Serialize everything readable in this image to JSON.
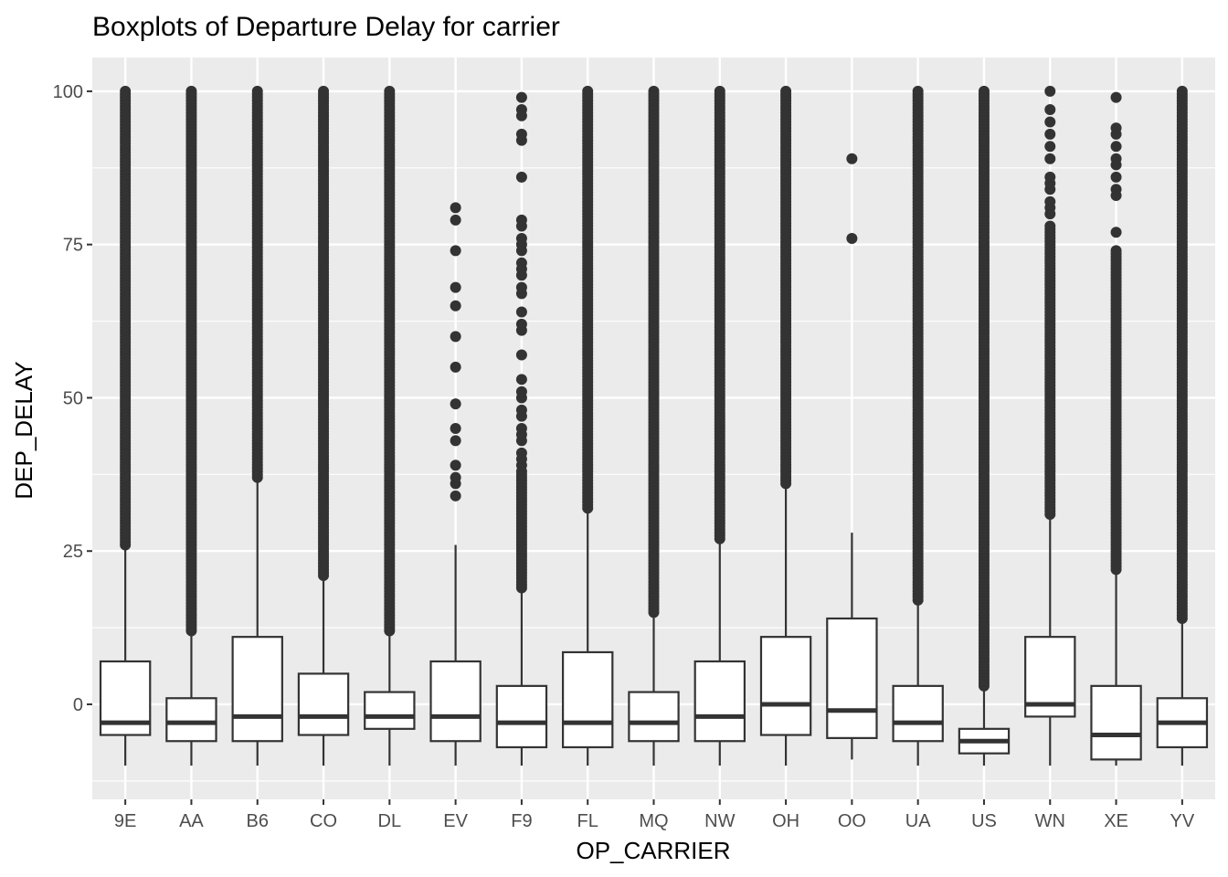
{
  "chart_data": {
    "type": "boxplot",
    "title": "Boxplots of Departure Delay for carrier",
    "xlabel": "OP_CARRIER",
    "ylabel": "DEP_DELAY",
    "ylim": [
      -15.5,
      105.5
    ],
    "yticks": [
      0,
      25,
      50,
      75,
      100
    ],
    "grid": true,
    "categories": [
      "9E",
      "AA",
      "B6",
      "CO",
      "DL",
      "EV",
      "F9",
      "FL",
      "MQ",
      "NW",
      "OH",
      "OO",
      "UA",
      "US",
      "WN",
      "XE",
      "YV"
    ],
    "boxes": [
      {
        "category": "9E",
        "whisker_low": -10,
        "q1": -5,
        "median": -3,
        "q3": 7,
        "whisker_high": 25.5,
        "outliers_dense": [
          26,
          100
        ]
      },
      {
        "category": "AA",
        "whisker_low": -10,
        "q1": -6,
        "median": -3,
        "q3": 1,
        "whisker_high": 11.5,
        "outliers_dense": [
          12,
          100
        ]
      },
      {
        "category": "B6",
        "whisker_low": -10,
        "q1": -6,
        "median": -2,
        "q3": 11,
        "whisker_high": 36.5,
        "outliers_dense": [
          37,
          100
        ]
      },
      {
        "category": "CO",
        "whisker_low": -10,
        "q1": -5,
        "median": -2,
        "q3": 5,
        "whisker_high": 20.5,
        "outliers_dense": [
          21,
          100
        ]
      },
      {
        "category": "DL",
        "whisker_low": -10,
        "q1": -4,
        "median": -2,
        "q3": 2,
        "whisker_high": 11.5,
        "outliers_dense": [
          12,
          100
        ]
      },
      {
        "category": "EV",
        "whisker_low": -10,
        "q1": -6,
        "median": -2,
        "q3": 7,
        "whisker_high": 26,
        "outliers": [
          34,
          36,
          37,
          39,
          43,
          45,
          49,
          55,
          60,
          65,
          68,
          74,
          79,
          81
        ]
      },
      {
        "category": "F9",
        "whisker_low": -10,
        "q1": -7,
        "median": -3,
        "q3": 3,
        "whisker_high": 18.5,
        "outliers_dense": [
          19,
          38
        ],
        "outliers": [
          39,
          40,
          41,
          43,
          44,
          45,
          47,
          48,
          50,
          51,
          53,
          57,
          61,
          62,
          64,
          67,
          68,
          70,
          71,
          72,
          74,
          75,
          76,
          78,
          79,
          86,
          92,
          93,
          96,
          97,
          99
        ]
      },
      {
        "category": "FL",
        "whisker_low": -10,
        "q1": -7,
        "median": -3,
        "q3": 8.5,
        "whisker_high": 31.5,
        "outliers_dense": [
          32,
          100
        ]
      },
      {
        "category": "MQ",
        "whisker_low": -10,
        "q1": -6,
        "median": -3,
        "q3": 2,
        "whisker_high": 14.5,
        "outliers_dense": [
          15,
          100
        ]
      },
      {
        "category": "NW",
        "whisker_low": -10,
        "q1": -6,
        "median": -2,
        "q3": 7,
        "whisker_high": 26.5,
        "outliers_dense": [
          27,
          100
        ]
      },
      {
        "category": "OH",
        "whisker_low": -10,
        "q1": -5,
        "median": 0,
        "q3": 11,
        "whisker_high": 35.5,
        "outliers_dense": [
          36,
          100
        ]
      },
      {
        "category": "OO",
        "whisker_low": -9,
        "q1": -5.5,
        "median": -1,
        "q3": 14,
        "whisker_high": 28,
        "outliers": [
          76,
          89
        ]
      },
      {
        "category": "UA",
        "whisker_low": -10,
        "q1": -6,
        "median": -3,
        "q3": 3,
        "whisker_high": 16.5,
        "outliers_dense": [
          17,
          100
        ]
      },
      {
        "category": "US",
        "whisker_low": -10,
        "q1": -8,
        "median": -6,
        "q3": -4,
        "whisker_high": 2.5,
        "outliers_dense": [
          3,
          100
        ]
      },
      {
        "category": "WN",
        "whisker_low": -10,
        "q1": -2,
        "median": 0,
        "q3": 11,
        "whisker_high": 30.5,
        "outliers_dense": [
          31,
          78
        ],
        "outliers": [
          80,
          81,
          82,
          84,
          85,
          86,
          89,
          91,
          93,
          95,
          97,
          100
        ]
      },
      {
        "category": "XE",
        "whisker_low": -10,
        "q1": -9,
        "median": -5,
        "q3": 3,
        "whisker_high": 21.5,
        "outliers_dense": [
          22,
          74
        ],
        "outliers": [
          77,
          83,
          84,
          86,
          88,
          89,
          91,
          93,
          94,
          99
        ]
      },
      {
        "category": "YV",
        "whisker_low": -10,
        "q1": -7,
        "median": -3,
        "q3": 1,
        "whisker_high": 13.5,
        "outliers_dense": [
          14,
          100
        ]
      }
    ]
  }
}
